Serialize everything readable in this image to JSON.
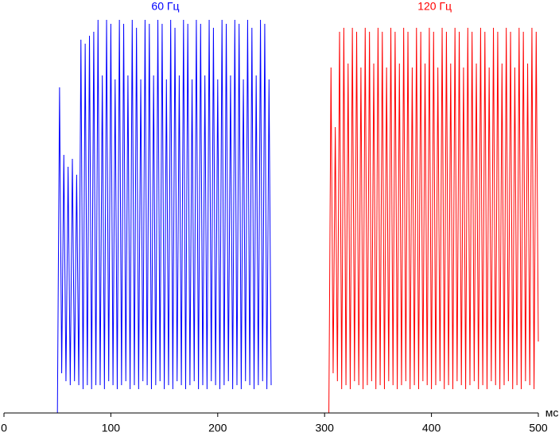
{
  "chart_data": {
    "type": "line",
    "x_label": "мс",
    "xlim": [
      0,
      500
    ],
    "xticks": [
      0,
      100,
      200,
      300,
      400,
      500
    ],
    "ylim": [
      0,
      100
    ],
    "x": [
      0,
      2,
      4,
      6,
      8,
      10,
      12,
      14,
      16,
      18,
      20,
      22,
      24,
      26,
      28,
      30,
      32,
      34,
      36,
      38,
      40,
      42,
      44,
      46,
      48,
      50,
      52,
      54,
      56,
      58,
      60,
      62,
      64,
      66,
      68,
      70,
      72,
      74,
      76,
      78,
      80,
      82,
      84,
      86,
      88,
      90,
      92,
      94,
      96,
      98,
      100,
      102,
      104,
      106,
      108,
      110,
      112,
      114,
      116,
      118,
      120,
      122,
      124,
      126,
      128,
      130,
      132,
      134,
      136,
      138,
      140,
      142,
      144,
      146,
      148,
      150,
      152,
      154,
      156,
      158,
      160,
      162,
      164,
      166,
      168,
      170,
      172,
      174,
      176,
      178,
      180,
      182,
      184,
      186,
      188,
      190,
      192,
      194,
      196,
      198,
      200,
      202,
      204,
      206,
      208,
      210,
      212,
      214,
      216,
      218,
      220,
      222,
      224,
      226,
      228,
      230,
      232,
      234,
      236,
      238,
      240,
      242,
      244,
      246,
      248,
      250,
      252,
      254,
      256,
      258,
      260,
      262,
      264,
      266,
      268,
      270,
      272,
      274,
      276,
      278,
      280,
      282,
      284,
      286,
      288,
      290,
      292,
      294,
      296,
      298,
      300,
      302,
      304,
      306,
      308,
      310,
      312,
      314,
      316,
      318,
      320,
      322,
      324,
      326,
      328,
      330,
      332,
      334,
      336,
      338,
      340,
      342,
      344,
      346,
      348,
      350,
      352,
      354,
      356,
      358,
      360,
      362,
      364,
      366,
      368,
      370,
      372,
      374,
      376,
      378,
      380,
      382,
      384,
      386,
      388,
      390,
      392,
      394,
      396,
      398,
      400,
      402,
      404,
      406,
      408,
      410,
      412,
      414,
      416,
      418,
      420,
      422,
      424,
      426,
      428,
      430,
      432,
      434,
      436,
      438,
      440,
      442,
      444,
      446,
      448,
      450,
      452,
      454,
      456,
      458,
      460,
      462,
      464,
      466,
      468,
      470,
      472,
      474,
      476,
      478,
      480,
      482,
      484,
      486,
      488,
      490,
      492,
      494,
      496,
      498,
      500
    ],
    "series": [
      {
        "name": "60 Гц",
        "color": "#0000ff",
        "values": [
          0,
          0,
          0,
          0,
          0,
          0,
          0,
          0,
          0,
          0,
          0,
          0,
          0,
          0,
          0,
          0,
          0,
          0,
          0,
          0,
          0,
          0,
          0,
          0,
          0,
          0,
          82,
          10,
          65,
          8,
          62,
          7,
          64,
          8,
          60,
          7,
          94,
          6,
          93,
          7,
          95,
          6,
          96,
          7,
          99,
          7,
          85,
          6,
          99,
          8,
          98,
          7,
          84,
          6,
          99,
          7,
          98,
          8,
          85,
          6,
          99,
          7,
          97,
          6,
          84,
          8,
          99,
          7,
          98,
          6,
          85,
          7,
          99,
          8,
          98,
          6,
          84,
          7,
          99,
          6,
          97,
          8,
          85,
          7,
          99,
          6,
          98,
          7,
          84,
          8,
          99,
          6,
          98,
          7,
          85,
          6,
          99,
          8,
          97,
          7,
          84,
          6,
          99,
          7,
          98,
          8,
          85,
          6,
          99,
          7,
          98,
          6,
          84,
          8,
          99,
          7,
          97,
          6,
          85,
          7,
          99,
          8,
          98,
          6,
          84,
          7,
          null,
          null,
          null,
          null,
          null,
          null,
          null,
          null,
          null,
          null,
          null,
          null,
          null,
          null,
          null,
          null,
          null,
          null,
          null,
          null,
          null,
          null,
          null,
          null,
          null,
          null,
          null,
          null,
          null,
          null,
          null,
          null,
          null,
          null,
          null,
          null,
          null,
          null,
          null,
          null,
          null,
          null,
          null,
          null,
          null,
          null,
          null,
          null,
          null,
          null,
          null,
          null,
          null,
          null,
          null,
          null,
          null,
          null,
          null,
          null,
          null,
          null,
          null,
          null,
          null,
          null,
          null,
          null,
          null,
          null,
          null,
          null,
          null,
          null,
          null,
          null,
          null,
          null,
          null,
          null,
          null,
          null,
          null,
          null,
          null,
          null,
          null,
          null,
          null,
          null,
          null,
          null,
          null,
          null,
          null,
          null,
          null,
          null,
          null,
          null,
          null,
          null,
          null,
          null,
          null,
          null,
          null,
          null,
          null,
          null,
          null,
          null,
          null,
          null,
          null,
          null,
          null,
          null,
          null,
          null,
          null,
          null,
          null,
          null,
          null
        ]
      },
      {
        "name": "120 Гц",
        "color": "#ff0000",
        "values": [
          null,
          null,
          null,
          null,
          null,
          null,
          null,
          null,
          null,
          null,
          null,
          null,
          null,
          null,
          null,
          null,
          null,
          null,
          null,
          null,
          null,
          null,
          null,
          null,
          null,
          null,
          null,
          null,
          null,
          null,
          null,
          null,
          null,
          null,
          null,
          null,
          null,
          null,
          null,
          null,
          null,
          null,
          null,
          null,
          null,
          null,
          null,
          null,
          null,
          null,
          null,
          null,
          null,
          null,
          null,
          null,
          null,
          null,
          null,
          null,
          null,
          null,
          null,
          null,
          null,
          null,
          null,
          null,
          null,
          null,
          null,
          null,
          null,
          null,
          null,
          null,
          null,
          null,
          null,
          null,
          null,
          null,
          null,
          null,
          null,
          null,
          null,
          null,
          null,
          null,
          null,
          null,
          null,
          null,
          null,
          null,
          null,
          null,
          null,
          null,
          null,
          null,
          null,
          null,
          null,
          null,
          null,
          null,
          null,
          null,
          null,
          null,
          null,
          null,
          null,
          null,
          null,
          null,
          null,
          null,
          null,
          null,
          null,
          null,
          null,
          0,
          0,
          0,
          0,
          0,
          0,
          0,
          0,
          0,
          0,
          0,
          0,
          0,
          0,
          0,
          0,
          0,
          0,
          0,
          0,
          0,
          0,
          0,
          0,
          0,
          0,
          0,
          0,
          87,
          10,
          72,
          8,
          96,
          6,
          97,
          7,
          88,
          6,
          97,
          8,
          96,
          7,
          87,
          6,
          97,
          7,
          96,
          8,
          88,
          6,
          97,
          7,
          96,
          6,
          87,
          8,
          97,
          7,
          96,
          6,
          88,
          7,
          97,
          8,
          96,
          6,
          87,
          7,
          97,
          6,
          96,
          8,
          88,
          7,
          97,
          6,
          96,
          7,
          87,
          8,
          97,
          6,
          96,
          7,
          88,
          6,
          97,
          8,
          96,
          7,
          87,
          6,
          97,
          7,
          96,
          8,
          88,
          6,
          97,
          7,
          96,
          6,
          87,
          8,
          97,
          7,
          96,
          6,
          88,
          7,
          97,
          8,
          96,
          6,
          87,
          7,
          97,
          6,
          96,
          8,
          88,
          7,
          97,
          6,
          96,
          18
        ]
      }
    ]
  }
}
